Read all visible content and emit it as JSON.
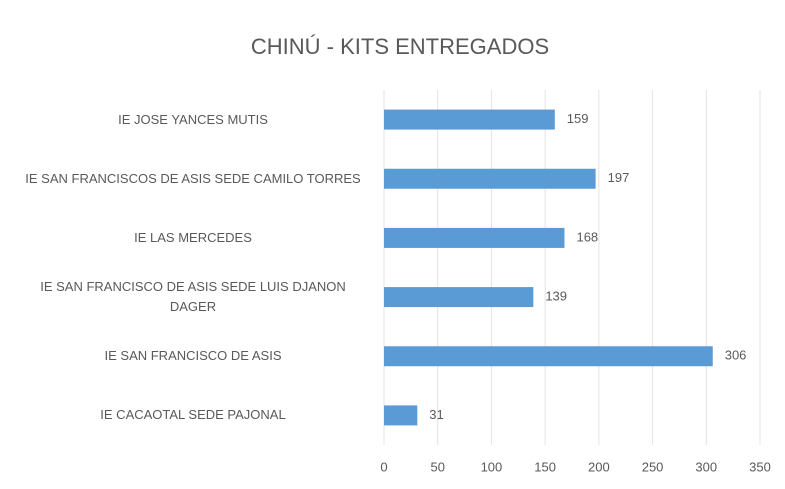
{
  "chart_data": {
    "type": "bar",
    "orientation": "horizontal",
    "title": "CHINÚ - KITS ENTREGADOS",
    "categories": [
      "IE JOSE YANCES MUTIS",
      "IE SAN FRANCISCOS DE ASIS SEDE CAMILO TORRES",
      "IE LAS MERCEDES",
      "IE SAN FRANCISCO DE ASIS SEDE LUIS DJANON DAGER",
      "IE SAN FRANCISCO DE ASIS",
      "IE CACAOTAL SEDE PAJONAL"
    ],
    "values": [
      159,
      197,
      168,
      139,
      306,
      31
    ],
    "color": "#5b9bd5",
    "xlim": [
      0,
      350
    ],
    "xticks": [
      0,
      50,
      100,
      150,
      200,
      250,
      300,
      350
    ],
    "grid": true
  }
}
